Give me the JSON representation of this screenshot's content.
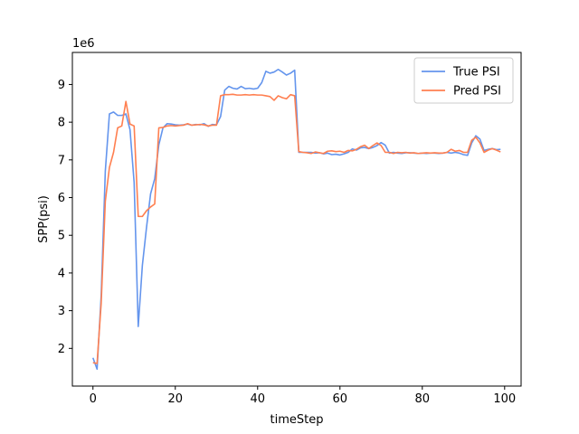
{
  "chart_data": {
    "type": "line",
    "xlabel": "timeStep",
    "ylabel": "SPP(psi)",
    "offset_text": "1e6",
    "xlim": [
      -5,
      104
    ],
    "ylim": [
      1000000,
      9850000
    ],
    "x_ticks": [
      0,
      20,
      40,
      60,
      80,
      100
    ],
    "x_tick_labels": [
      "0",
      "20",
      "40",
      "60",
      "80",
      "100"
    ],
    "y_ticks": [
      2000000,
      3000000,
      4000000,
      5000000,
      6000000,
      7000000,
      8000000,
      9000000
    ],
    "y_tick_labels": [
      "2",
      "3",
      "4",
      "5",
      "6",
      "7",
      "8",
      "9"
    ],
    "legend_position": "top-right",
    "grid": false,
    "series": [
      {
        "name": "True PSI",
        "color": "#6495ED",
        "x": [
          0,
          1,
          2,
          3,
          4,
          5,
          6,
          7,
          8,
          9,
          10,
          11,
          12,
          13,
          14,
          15,
          16,
          17,
          18,
          19,
          20,
          21,
          22,
          23,
          24,
          25,
          26,
          27,
          28,
          29,
          30,
          31,
          32,
          33,
          34,
          35,
          36,
          37,
          38,
          39,
          40,
          41,
          42,
          43,
          44,
          45,
          46,
          47,
          48,
          49,
          50,
          51,
          52,
          53,
          54,
          55,
          56,
          57,
          58,
          59,
          60,
          61,
          62,
          63,
          64,
          65,
          66,
          67,
          68,
          69,
          70,
          71,
          72,
          73,
          74,
          75,
          76,
          77,
          78,
          79,
          80,
          81,
          82,
          83,
          84,
          85,
          86,
          87,
          88,
          89,
          90,
          91,
          92,
          93,
          94,
          95,
          96,
          97,
          98,
          99
        ],
        "values": [
          1750000,
          1450000,
          3400000,
          6700000,
          8220000,
          8270000,
          8180000,
          8180000,
          8220000,
          7800000,
          6400000,
          2580000,
          4200000,
          5200000,
          6100000,
          6500000,
          7400000,
          7850000,
          7960000,
          7950000,
          7930000,
          7920000,
          7930000,
          7950000,
          7920000,
          7940000,
          7930000,
          7960000,
          7890000,
          7940000,
          7930000,
          8150000,
          8850000,
          8950000,
          8900000,
          8880000,
          8950000,
          8890000,
          8900000,
          8880000,
          8900000,
          9050000,
          9350000,
          9300000,
          9330000,
          9400000,
          9330000,
          9250000,
          9300000,
          9380000,
          7200000,
          7200000,
          7200000,
          7200000,
          7180000,
          7190000,
          7160000,
          7180000,
          7140000,
          7150000,
          7130000,
          7160000,
          7200000,
          7290000,
          7260000,
          7320000,
          7330000,
          7300000,
          7330000,
          7380000,
          7460000,
          7390000,
          7180000,
          7200000,
          7180000,
          7170000,
          7190000,
          7190000,
          7180000,
          7170000,
          7180000,
          7170000,
          7180000,
          7180000,
          7170000,
          7180000,
          7200000,
          7180000,
          7200000,
          7180000,
          7140000,
          7120000,
          7450000,
          7640000,
          7550000,
          7250000,
          7280000,
          7300000,
          7270000,
          7280000
        ]
      },
      {
        "name": "Pred PSI",
        "color": "#FF7F50",
        "x": [
          0,
          1,
          2,
          3,
          4,
          5,
          6,
          7,
          8,
          9,
          10,
          11,
          12,
          13,
          14,
          15,
          16,
          17,
          18,
          19,
          20,
          21,
          22,
          23,
          24,
          25,
          26,
          27,
          28,
          29,
          30,
          31,
          32,
          33,
          34,
          35,
          36,
          37,
          38,
          39,
          40,
          41,
          42,
          43,
          44,
          45,
          46,
          47,
          48,
          49,
          50,
          51,
          52,
          53,
          54,
          55,
          56,
          57,
          58,
          59,
          60,
          61,
          62,
          63,
          64,
          65,
          66,
          67,
          68,
          69,
          70,
          71,
          72,
          73,
          74,
          75,
          76,
          77,
          78,
          79,
          80,
          81,
          82,
          83,
          84,
          85,
          86,
          87,
          88,
          89,
          90,
          91,
          92,
          93,
          94,
          95,
          96,
          97,
          98,
          99
        ],
        "values": [
          1620000,
          1600000,
          3200000,
          5900000,
          6800000,
          7200000,
          7850000,
          7900000,
          8550000,
          7950000,
          7900000,
          5500000,
          5500000,
          5650000,
          5750000,
          5830000,
          7850000,
          7860000,
          7900000,
          7910000,
          7900000,
          7910000,
          7920000,
          7960000,
          7920000,
          7930000,
          7940000,
          7930000,
          7900000,
          7920000,
          7920000,
          8700000,
          8730000,
          8730000,
          8740000,
          8720000,
          8720000,
          8730000,
          8720000,
          8730000,
          8720000,
          8720000,
          8700000,
          8680000,
          8580000,
          8700000,
          8650000,
          8620000,
          8730000,
          8700000,
          7220000,
          7200000,
          7190000,
          7170000,
          7210000,
          7190000,
          7170000,
          7230000,
          7240000,
          7220000,
          7230000,
          7200000,
          7250000,
          7240000,
          7280000,
          7350000,
          7390000,
          7300000,
          7380000,
          7450000,
          7380000,
          7200000,
          7200000,
          7170000,
          7200000,
          7190000,
          7200000,
          7180000,
          7190000,
          7170000,
          7180000,
          7190000,
          7180000,
          7190000,
          7180000,
          7180000,
          7200000,
          7280000,
          7230000,
          7250000,
          7200000,
          7200000,
          7520000,
          7600000,
          7450000,
          7200000,
          7260000,
          7300000,
          7260000,
          7210000
        ]
      }
    ]
  }
}
